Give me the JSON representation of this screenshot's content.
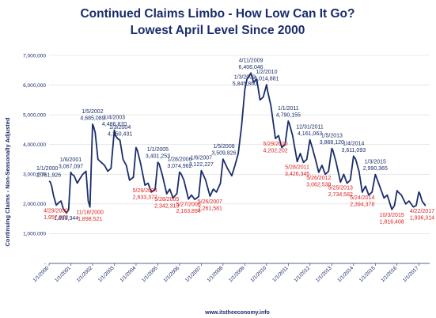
{
  "chart_data": {
    "type": "line",
    "title": "Continued Claims Limbo - How Low Can It Go?",
    "subtitle": "Lowest April Level Since 2000",
    "ylabel": "Continuing Claims - Non-Seasonally Adjusted",
    "xlabel": "",
    "source": "www.itstheeconomy.info",
    "ylim": [
      0,
      7000000
    ],
    "yticks": [
      {
        "v": 0,
        "label": "-"
      },
      {
        "v": 1000000,
        "label": "1,000,000"
      },
      {
        "v": 2000000,
        "label": "2,000,000"
      },
      {
        "v": 3000000,
        "label": "3,000,000"
      },
      {
        "v": 4000000,
        "label": "4,000,000"
      },
      {
        "v": 5000000,
        "label": "5,000,000"
      },
      {
        "v": 6000000,
        "label": "6,000,000"
      },
      {
        "v": 7000000,
        "label": "7,000,000"
      }
    ],
    "xlim": [
      2000.0,
      2017.5
    ],
    "xticks": [
      {
        "v": 2000,
        "label": "1/1/2000"
      },
      {
        "v": 2001,
        "label": "1/1/2001"
      },
      {
        "v": 2002,
        "label": "1/1/2002"
      },
      {
        "v": 2003,
        "label": "1/1/2003"
      },
      {
        "v": 2004,
        "label": "1/1/2004"
      },
      {
        "v": 2005,
        "label": "1/1/2005"
      },
      {
        "v": 2006,
        "label": "1/1/2006"
      },
      {
        "v": 2007,
        "label": "1/1/2007"
      },
      {
        "v": 2008,
        "label": "1/1/2008"
      },
      {
        "v": 2009,
        "label": "1/1/2009"
      },
      {
        "v": 2010,
        "label": "1/1/2010"
      },
      {
        "v": 2011,
        "label": "1/1/2011"
      },
      {
        "v": 2012,
        "label": "1/1/2012"
      },
      {
        "v": 2013,
        "label": "1/1/2013"
      },
      {
        "v": 2014,
        "label": "1/1/2014"
      },
      {
        "v": 2015,
        "label": "1/1/2015"
      },
      {
        "v": 2016,
        "label": "1/1/2016"
      },
      {
        "v": 2017,
        "label": "1/1/2017"
      }
    ],
    "line_color": "#1a2d6b",
    "series": [
      {
        "x": [
          2000.0,
          2000.05,
          2000.12,
          2000.2,
          2000.33,
          2000.45,
          2000.55,
          2000.65,
          2000.8,
          2000.9,
          2001.0,
          2001.05,
          2001.15,
          2001.3,
          2001.42,
          2001.55,
          2001.7,
          2001.8,
          2001.88,
          2002.0,
          2002.05,
          2002.12,
          2002.25,
          2002.4,
          2002.55,
          2002.7,
          2002.85,
          2003.0,
          2003.05,
          2003.15,
          2003.26,
          2003.4,
          2003.55,
          2003.7,
          2003.88,
          2004.0,
          2004.06,
          2004.2,
          2004.41,
          2004.55,
          2004.7,
          2004.88,
          2005.0,
          2005.06,
          2005.2,
          2005.41,
          2005.55,
          2005.7,
          2005.88,
          2006.0,
          2006.08,
          2006.2,
          2006.41,
          2006.55,
          2006.7,
          2006.88,
          2007.0,
          2007.05,
          2007.2,
          2007.4,
          2007.55,
          2007.7,
          2007.88,
          2008.0,
          2008.04,
          2008.2,
          2008.4,
          2008.55,
          2008.7,
          2008.85,
          2009.0,
          2009.1,
          2009.28,
          2009.4,
          2009.55,
          2009.7,
          2009.85,
          2010.0,
          2010.05,
          2010.2,
          2010.41,
          2010.55,
          2010.7,
          2010.85,
          2011.0,
          2011.05,
          2011.2,
          2011.41,
          2011.55,
          2011.7,
          2011.85,
          2011.99,
          2012.1,
          2012.25,
          2012.4,
          2012.55,
          2012.7,
          2012.85,
          2013.0,
          2013.05,
          2013.2,
          2013.4,
          2013.55,
          2013.7,
          2013.85,
          2014.0,
          2014.1,
          2014.25,
          2014.4,
          2014.55,
          2014.7,
          2014.85,
          2015.0,
          2015.05,
          2015.2,
          2015.4,
          2015.55,
          2015.76,
          2015.88,
          2016.0,
          2016.05,
          2016.2,
          2016.4,
          2016.55,
          2016.75,
          2016.88,
          2017.0,
          2017.05,
          2017.15,
          2017.31
        ],
        "y": [
          2761926,
          2750000,
          2600000,
          2300000,
          1957972,
          2050000,
          2100000,
          1850000,
          1699344,
          1800000,
          3067097,
          3000000,
          2950000,
          2700000,
          2850000,
          3000000,
          3100000,
          2100000,
          1898521,
          4685089,
          4600000,
          4400000,
          3500000,
          3400000,
          3300000,
          3100000,
          3200000,
          4486870,
          4300000,
          4200000,
          4150431,
          3500000,
          3300000,
          2800000,
          2900000,
          3900000,
          3800000,
          3400000,
          2633372,
          2700000,
          2400000,
          2500000,
          3401253,
          3350000,
          3000000,
          2342313,
          2500000,
          2200000,
          2350000,
          3074962,
          3000000,
          2800000,
          2163894,
          2300000,
          2150000,
          2250000,
          3122227,
          3050000,
          2800000,
          2261581,
          2500000,
          2400000,
          2700000,
          3509826,
          3450000,
          3200000,
          2950000,
          3300000,
          3700000,
          4600000,
          5845860,
          6200000,
          6406046,
          6100000,
          6200000,
          5500000,
          5600000,
          6014881,
          5800000,
          5300000,
          4202202,
          4300000,
          3900000,
          4000000,
          4790155,
          4700000,
          4300000,
          3426345,
          3700000,
          3400000,
          3500000,
          4161063,
          3900000,
          3500000,
          3062538,
          3300000,
          3000000,
          3100000,
          3868120,
          3800000,
          3400000,
          2734582,
          3000000,
          2700000,
          2800000,
          3611093,
          3500000,
          3100000,
          2394378,
          2600000,
          2300000,
          2400000,
          2990365,
          2900000,
          2600000,
          2200000,
          2300000,
          1816408,
          1950000,
          2450000,
          2400000,
          2300000,
          2000000,
          2100000,
          1900000,
          1950000,
          2400000,
          2350000,
          2100000,
          1936314
        ]
      }
    ],
    "annotations": [
      {
        "x": 2000.0,
        "y": 2761926,
        "date": "1/1/2000",
        "value": "2,761,926",
        "kind": "high"
      },
      {
        "x": 2000.33,
        "y": 1957972,
        "date": "4/29/2000",
        "value": "1,957,972",
        "kind": "low"
      },
      {
        "x": 2000.8,
        "y": 1699344,
        "date": "",
        "value": "1,699,344",
        "kind": "plain"
      },
      {
        "x": 2001.0,
        "y": 3067097,
        "date": "1/6/2001",
        "value": "3,067,097",
        "kind": "high"
      },
      {
        "x": 2001.88,
        "y": 1898521,
        "date": "11/18/2000",
        "value": "1,898,521",
        "kind": "low"
      },
      {
        "x": 2002.0,
        "y": 4685089,
        "date": "1/5/2002",
        "value": "4,685,089",
        "kind": "high"
      },
      {
        "x": 2003.0,
        "y": 4486870,
        "date": "1/4/2003",
        "value": "4,486,870",
        "kind": "high"
      },
      {
        "x": 2003.26,
        "y": 4150431,
        "date": "1/3/2004",
        "value": "4,150,431",
        "kind": "high"
      },
      {
        "x": 2004.41,
        "y": 2633372,
        "date": "5/29/2004",
        "value": "2,633,372",
        "kind": "low"
      },
      {
        "x": 2005.0,
        "y": 3401253,
        "date": "1/1/2005",
        "value": "3,401,253",
        "kind": "high"
      },
      {
        "x": 2005.41,
        "y": 2342313,
        "date": "5/28/2005",
        "value": "2,342,313",
        "kind": "low"
      },
      {
        "x": 2006.0,
        "y": 3074962,
        "date": "1/28/2006",
        "value": "3,074,962",
        "kind": "high"
      },
      {
        "x": 2006.41,
        "y": 2163894,
        "date": "5/27/2006",
        "value": "2,163,894",
        "kind": "low"
      },
      {
        "x": 2007.0,
        "y": 3122227,
        "date": "1/6/2007",
        "value": "3,122,227",
        "kind": "high"
      },
      {
        "x": 2007.4,
        "y": 2261581,
        "date": "5/26/2007",
        "value": "2,261,581",
        "kind": "low"
      },
      {
        "x": 2008.04,
        "y": 3509826,
        "date": "1/5/2008",
        "value": "3,509,826",
        "kind": "high"
      },
      {
        "x": 2009.0,
        "y": 5845860,
        "date": "1/3/2009",
        "value": "5,845,860",
        "kind": "high"
      },
      {
        "x": 2009.28,
        "y": 6406046,
        "date": "4/11/2009",
        "value": "6,406,046",
        "kind": "high"
      },
      {
        "x": 2010.0,
        "y": 6014881,
        "date": "1/2/2010",
        "value": "6,014,881",
        "kind": "high"
      },
      {
        "x": 2010.41,
        "y": 4202202,
        "date": "5/29/2010",
        "value": "4,202,202",
        "kind": "low"
      },
      {
        "x": 2011.0,
        "y": 4790155,
        "date": "1/1/2011",
        "value": "4,790,155",
        "kind": "high"
      },
      {
        "x": 2011.41,
        "y": 3426345,
        "date": "5/28/2011",
        "value": "3,426,345",
        "kind": "low"
      },
      {
        "x": 2011.99,
        "y": 4161063,
        "date": "12/31/2011",
        "value": "4,161,063",
        "kind": "high"
      },
      {
        "x": 2012.4,
        "y": 3062538,
        "date": "5/26/2012",
        "value": "3,062,538",
        "kind": "low"
      },
      {
        "x": 2013.0,
        "y": 3868120,
        "date": "1/5/2013",
        "value": "3,868,120",
        "kind": "high"
      },
      {
        "x": 2013.4,
        "y": 2734582,
        "date": "5/25/2013",
        "value": "2,734,582",
        "kind": "low"
      },
      {
        "x": 2014.0,
        "y": 3611093,
        "date": "1/4/2014",
        "value": "3,611,093",
        "kind": "high"
      },
      {
        "x": 2014.4,
        "y": 2394378,
        "date": "5/24/2014",
        "value": "2,394,378",
        "kind": "low"
      },
      {
        "x": 2015.0,
        "y": 2990365,
        "date": "1/3/2015",
        "value": "2,990,365",
        "kind": "high"
      },
      {
        "x": 2015.76,
        "y": 1816408,
        "date": "10/3/2015",
        "value": "1,816,408",
        "kind": "low"
      },
      {
        "x": 2017.31,
        "y": 1936314,
        "date": "4/22/2017",
        "value": "1,936,314",
        "kind": "low"
      }
    ],
    "colors": {
      "high": "#1a2d6b",
      "low": "#e02020",
      "plain": "#1a2d6b",
      "axis": "#1a2d6b",
      "grid": "#d9d9d9"
    }
  }
}
